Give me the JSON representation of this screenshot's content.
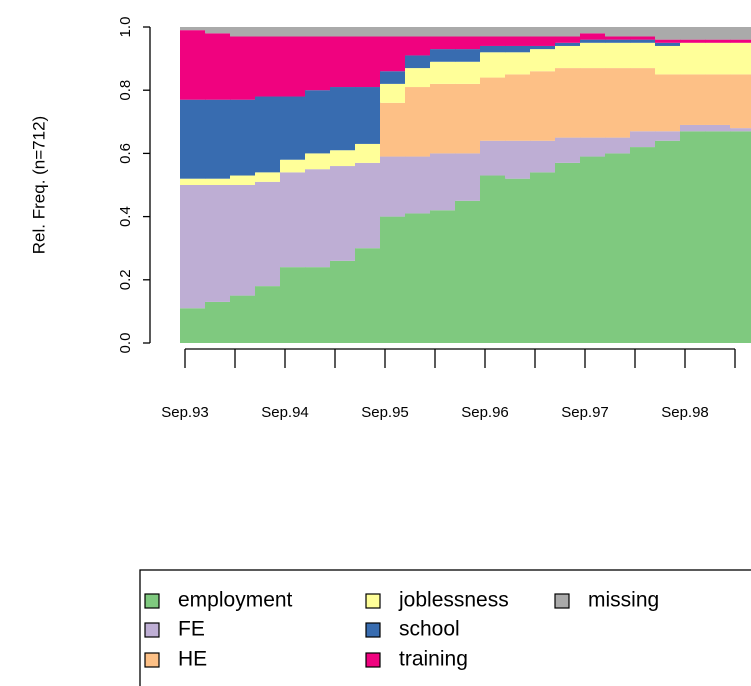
{
  "chart_data": {
    "type": "stacked_bar",
    "y_label": "Rel. Freq. (n=712)",
    "categories": [
      "Sep.93",
      null,
      null,
      null,
      "Sep.94",
      null,
      null,
      null,
      "Sep.95",
      null,
      null,
      null,
      "Sep.96",
      null,
      null,
      null,
      "Sep.97",
      null,
      null,
      null,
      "Sep.98",
      null,
      null
    ],
    "series": [
      {
        "name": "employment",
        "color": "#7fc97f",
        "values": [
          0.11,
          0.13,
          0.15,
          0.18,
          0.24,
          0.24,
          0.26,
          0.3,
          0.4,
          0.41,
          0.42,
          0.45,
          0.53,
          0.52,
          0.54,
          0.57,
          0.59,
          0.6,
          0.62,
          0.64,
          0.67,
          0.67,
          0.67
        ]
      },
      {
        "name": "FE",
        "color": "#beaed4",
        "values": [
          0.39,
          0.37,
          0.35,
          0.33,
          0.3,
          0.31,
          0.3,
          0.27,
          0.19,
          0.18,
          0.18,
          0.15,
          0.11,
          0.12,
          0.1,
          0.08,
          0.06,
          0.05,
          0.05,
          0.03,
          0.02,
          0.02,
          0.01
        ]
      },
      {
        "name": "HE",
        "color": "#fdc086",
        "values": [
          0,
          0,
          0,
          0,
          0,
          0,
          0,
          0,
          0.17,
          0.22,
          0.22,
          0.22,
          0.2,
          0.21,
          0.22,
          0.22,
          0.22,
          0.22,
          0.2,
          0.18,
          0.16,
          0.16,
          0.17
        ]
      },
      {
        "name": "joblessness",
        "color": "#ffff99",
        "values": [
          0.02,
          0.02,
          0.03,
          0.03,
          0.04,
          0.05,
          0.05,
          0.06,
          0.06,
          0.06,
          0.07,
          0.07,
          0.08,
          0.07,
          0.07,
          0.07,
          0.08,
          0.08,
          0.08,
          0.09,
          0.1,
          0.1,
          0.1
        ]
      },
      {
        "name": "school",
        "color": "#386cb0",
        "values": [
          0.25,
          0.25,
          0.24,
          0.24,
          0.2,
          0.2,
          0.2,
          0.18,
          0.04,
          0.04,
          0.04,
          0.04,
          0.02,
          0.02,
          0.01,
          0.01,
          0.01,
          0.01,
          0.01,
          0.01,
          0,
          0,
          0
        ]
      },
      {
        "name": "training",
        "color": "#f0027f",
        "values": [
          0.22,
          0.21,
          0.2,
          0.19,
          0.19,
          0.17,
          0.16,
          0.16,
          0.11,
          0.06,
          0.04,
          0.04,
          0.03,
          0.03,
          0.03,
          0.02,
          0.02,
          0.01,
          0.01,
          0.01,
          0.01,
          0.01,
          0.01
        ]
      },
      {
        "name": "missing",
        "color": "#aaaaaa",
        "values": [
          0.01,
          0.02,
          0.03,
          0.03,
          0.03,
          0.03,
          0.03,
          0.03,
          0.03,
          0.03,
          0.03,
          0.03,
          0.03,
          0.03,
          0.03,
          0.03,
          0.02,
          0.03,
          0.03,
          0.04,
          0.04,
          0.04,
          0.04
        ]
      }
    ],
    "ylim": [
      0,
      1
    ],
    "yticks": [
      {
        "value": 0,
        "label": "0.0"
      },
      {
        "value": 0.2,
        "label": "0.2"
      },
      {
        "value": 0.4,
        "label": "0.4"
      },
      {
        "value": 0.6,
        "label": "0.6"
      },
      {
        "value": 0.8,
        "label": "0.8"
      },
      {
        "value": 1,
        "label": "1.0"
      }
    ]
  }
}
